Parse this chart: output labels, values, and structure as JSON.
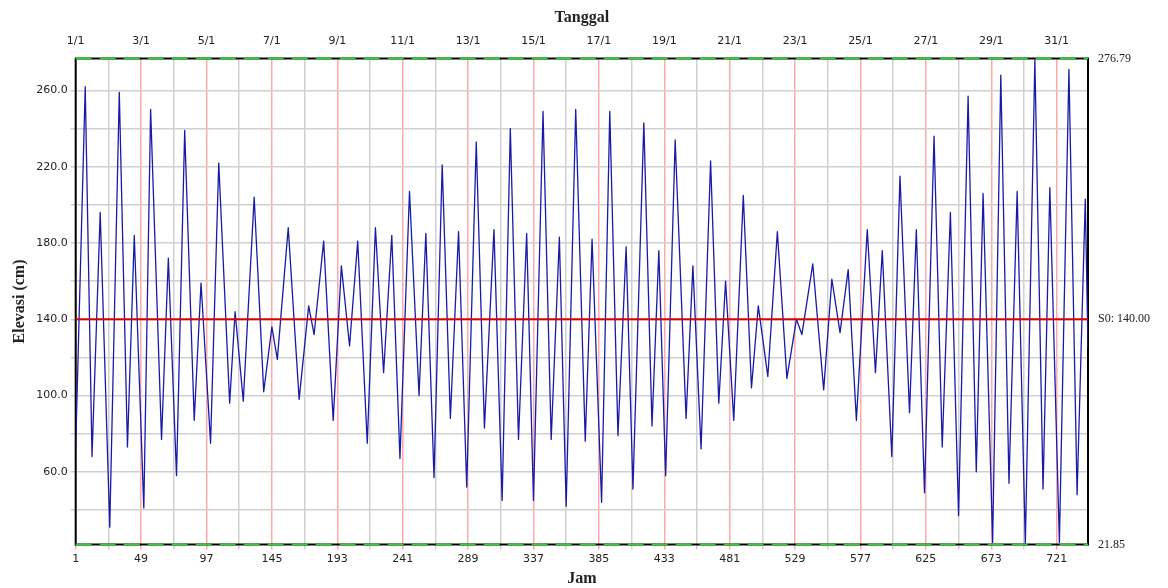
{
  "chart_data": {
    "type": "line",
    "xlabel": "Jam",
    "ylabel": "Elevasi (cm)",
    "x2label": "Tanggal",
    "xlim": [
      1,
      744
    ],
    "xticks": [
      1,
      {
        "value": 25,
        "label": null
      },
      49,
      {
        "value": 73,
        "label": null
      },
      97,
      {
        "value": 121,
        "label": null
      },
      145,
      {
        "value": 169,
        "label": null
      },
      193,
      {
        "value": 217,
        "label": null
      },
      241,
      {
        "value": 265,
        "label": null
      },
      289,
      {
        "value": 313,
        "label": null
      },
      337,
      {
        "value": 361,
        "label": null
      },
      385,
      {
        "value": 409,
        "label": null
      },
      433,
      {
        "value": 457,
        "label": null
      },
      481,
      {
        "value": 505,
        "label": null
      },
      529,
      {
        "value": 553,
        "label": null
      },
      577,
      {
        "value": 601,
        "label": null
      },
      625,
      {
        "value": 649,
        "label": null
      },
      673,
      {
        "value": 697,
        "label": null
      },
      721
    ],
    "x2lim": [
      "--01-01T00:00",
      "--01-31T23:00"
    ],
    "x2ticks": [
      {
        "value": "--01-01",
        "label": "1/1"
      },
      {
        "value": "--01-03",
        "label": "3/1"
      },
      {
        "value": "--01-05",
        "label": "5/1"
      },
      {
        "value": "--01-07",
        "label": "7/1"
      },
      {
        "value": "--01-09",
        "label": "9/1"
      },
      {
        "value": "--01-11",
        "label": "11/1"
      },
      {
        "value": "--01-13",
        "label": "13/1"
      },
      {
        "value": "--01-15",
        "label": "15/1"
      },
      {
        "value": "--01-17",
        "label": "17/1"
      },
      {
        "value": "--01-19",
        "label": "19/1"
      },
      {
        "value": "--01-21",
        "label": "21/1"
      },
      {
        "value": "--01-23",
        "label": "23/1"
      },
      {
        "value": "--01-25",
        "label": "25/1"
      },
      {
        "value": "--01-27",
        "label": "27/1"
      },
      {
        "value": "--01-29",
        "label": "29/1"
      },
      {
        "value": "--01-31",
        "label": "31/1"
      }
    ],
    "ylim": [
      21.85,
      276.79
    ],
    "yticks": [
      {
        "value": 40,
        "label": null
      },
      {
        "value": 60,
        "label": "60.0"
      },
      {
        "value": 80,
        "label": null
      },
      {
        "value": 100,
        "label": "100.0"
      },
      {
        "value": 120,
        "label": null
      },
      {
        "value": 140,
        "label": "140.0"
      },
      {
        "value": 160,
        "label": null
      },
      {
        "value": 180,
        "label": "180.0"
      },
      {
        "value": 200,
        "label": null
      },
      {
        "value": 220,
        "label": "220.0"
      },
      {
        "value": 240,
        "label": null
      },
      {
        "value": 260,
        "label": "260.0"
      }
    ],
    "grid": true,
    "legend": false,
    "marker": "none",
    "line_style": "solid",
    "ref_lines": [
      {
        "axis": "y",
        "value": 276.79,
        "label": "276.79",
        "color": "#33cc33",
        "line_style": "dashed"
      },
      {
        "axis": "y",
        "value": 140,
        "label": "S0: 140.00",
        "color": "#dd0000",
        "line_style": "solid"
      },
      {
        "axis": "y",
        "value": 21.85,
        "label": "21.85",
        "color": "#33cc33",
        "line_style": "dashed"
      }
    ],
    "series": [
      {
        "color": "#1a1aa8",
        "x": [
          1,
          8,
          13,
          19,
          26,
          33,
          39,
          44,
          51,
          56,
          64,
          69,
          75,
          81,
          88,
          93,
          100,
          106,
          114,
          118,
          124,
          132,
          139,
          145,
          149,
          157,
          165,
          172,
          176,
          183,
          190,
          196,
          202,
          208,
          215,
          221,
          227,
          233,
          239,
          246,
          253,
          258,
          264,
          270,
          276,
          282,
          288,
          295,
          301,
          308,
          314,
          320,
          326,
          332,
          337,
          344,
          350,
          356,
          361,
          368,
          375,
          380,
          387,
          393,
          399,
          405,
          410,
          418,
          424,
          429,
          434,
          441,
          449,
          454,
          460,
          467,
          473,
          478,
          484,
          491,
          497,
          502,
          509,
          516,
          523,
          530,
          534,
          542,
          550,
          556,
          562,
          568,
          574,
          582,
          588,
          593,
          600,
          606,
          613,
          618,
          624,
          631,
          637,
          643,
          649,
          656,
          662,
          667,
          674,
          680,
          686,
          692,
          698,
          705,
          711,
          716,
          723,
          730,
          736,
          742,
          744
        ],
        "values": [
          73,
          262,
          68,
          196,
          31,
          259,
          73,
          184,
          41,
          250,
          77,
          172,
          58,
          239,
          87,
          159,
          75,
          222,
          96,
          144,
          97,
          204,
          102,
          136,
          119,
          188,
          98,
          147,
          132,
          181,
          87,
          168,
          126,
          181,
          75,
          188,
          112,
          184,
          67,
          207,
          100,
          185,
          57,
          221,
          88,
          186,
          52,
          233,
          83,
          187,
          45,
          240,
          77,
          185,
          45,
          249,
          77,
          183,
          42,
          250,
          76,
          182,
          44,
          249,
          79,
          178,
          51,
          243,
          84,
          176,
          58,
          234,
          88,
          168,
          72,
          223,
          96,
          160,
          87,
          205,
          104,
          147,
          110,
          186,
          109,
          140,
          132,
          169,
          103,
          161,
          133,
          166,
          87,
          187,
          112,
          176,
          68,
          215,
          91,
          187,
          49,
          236,
          73,
          196,
          37,
          257,
          60,
          206,
          23,
          268,
          54,
          207,
          22,
          276,
          51,
          209,
          23,
          271,
          48,
          203,
          125
        ]
      }
    ]
  }
}
